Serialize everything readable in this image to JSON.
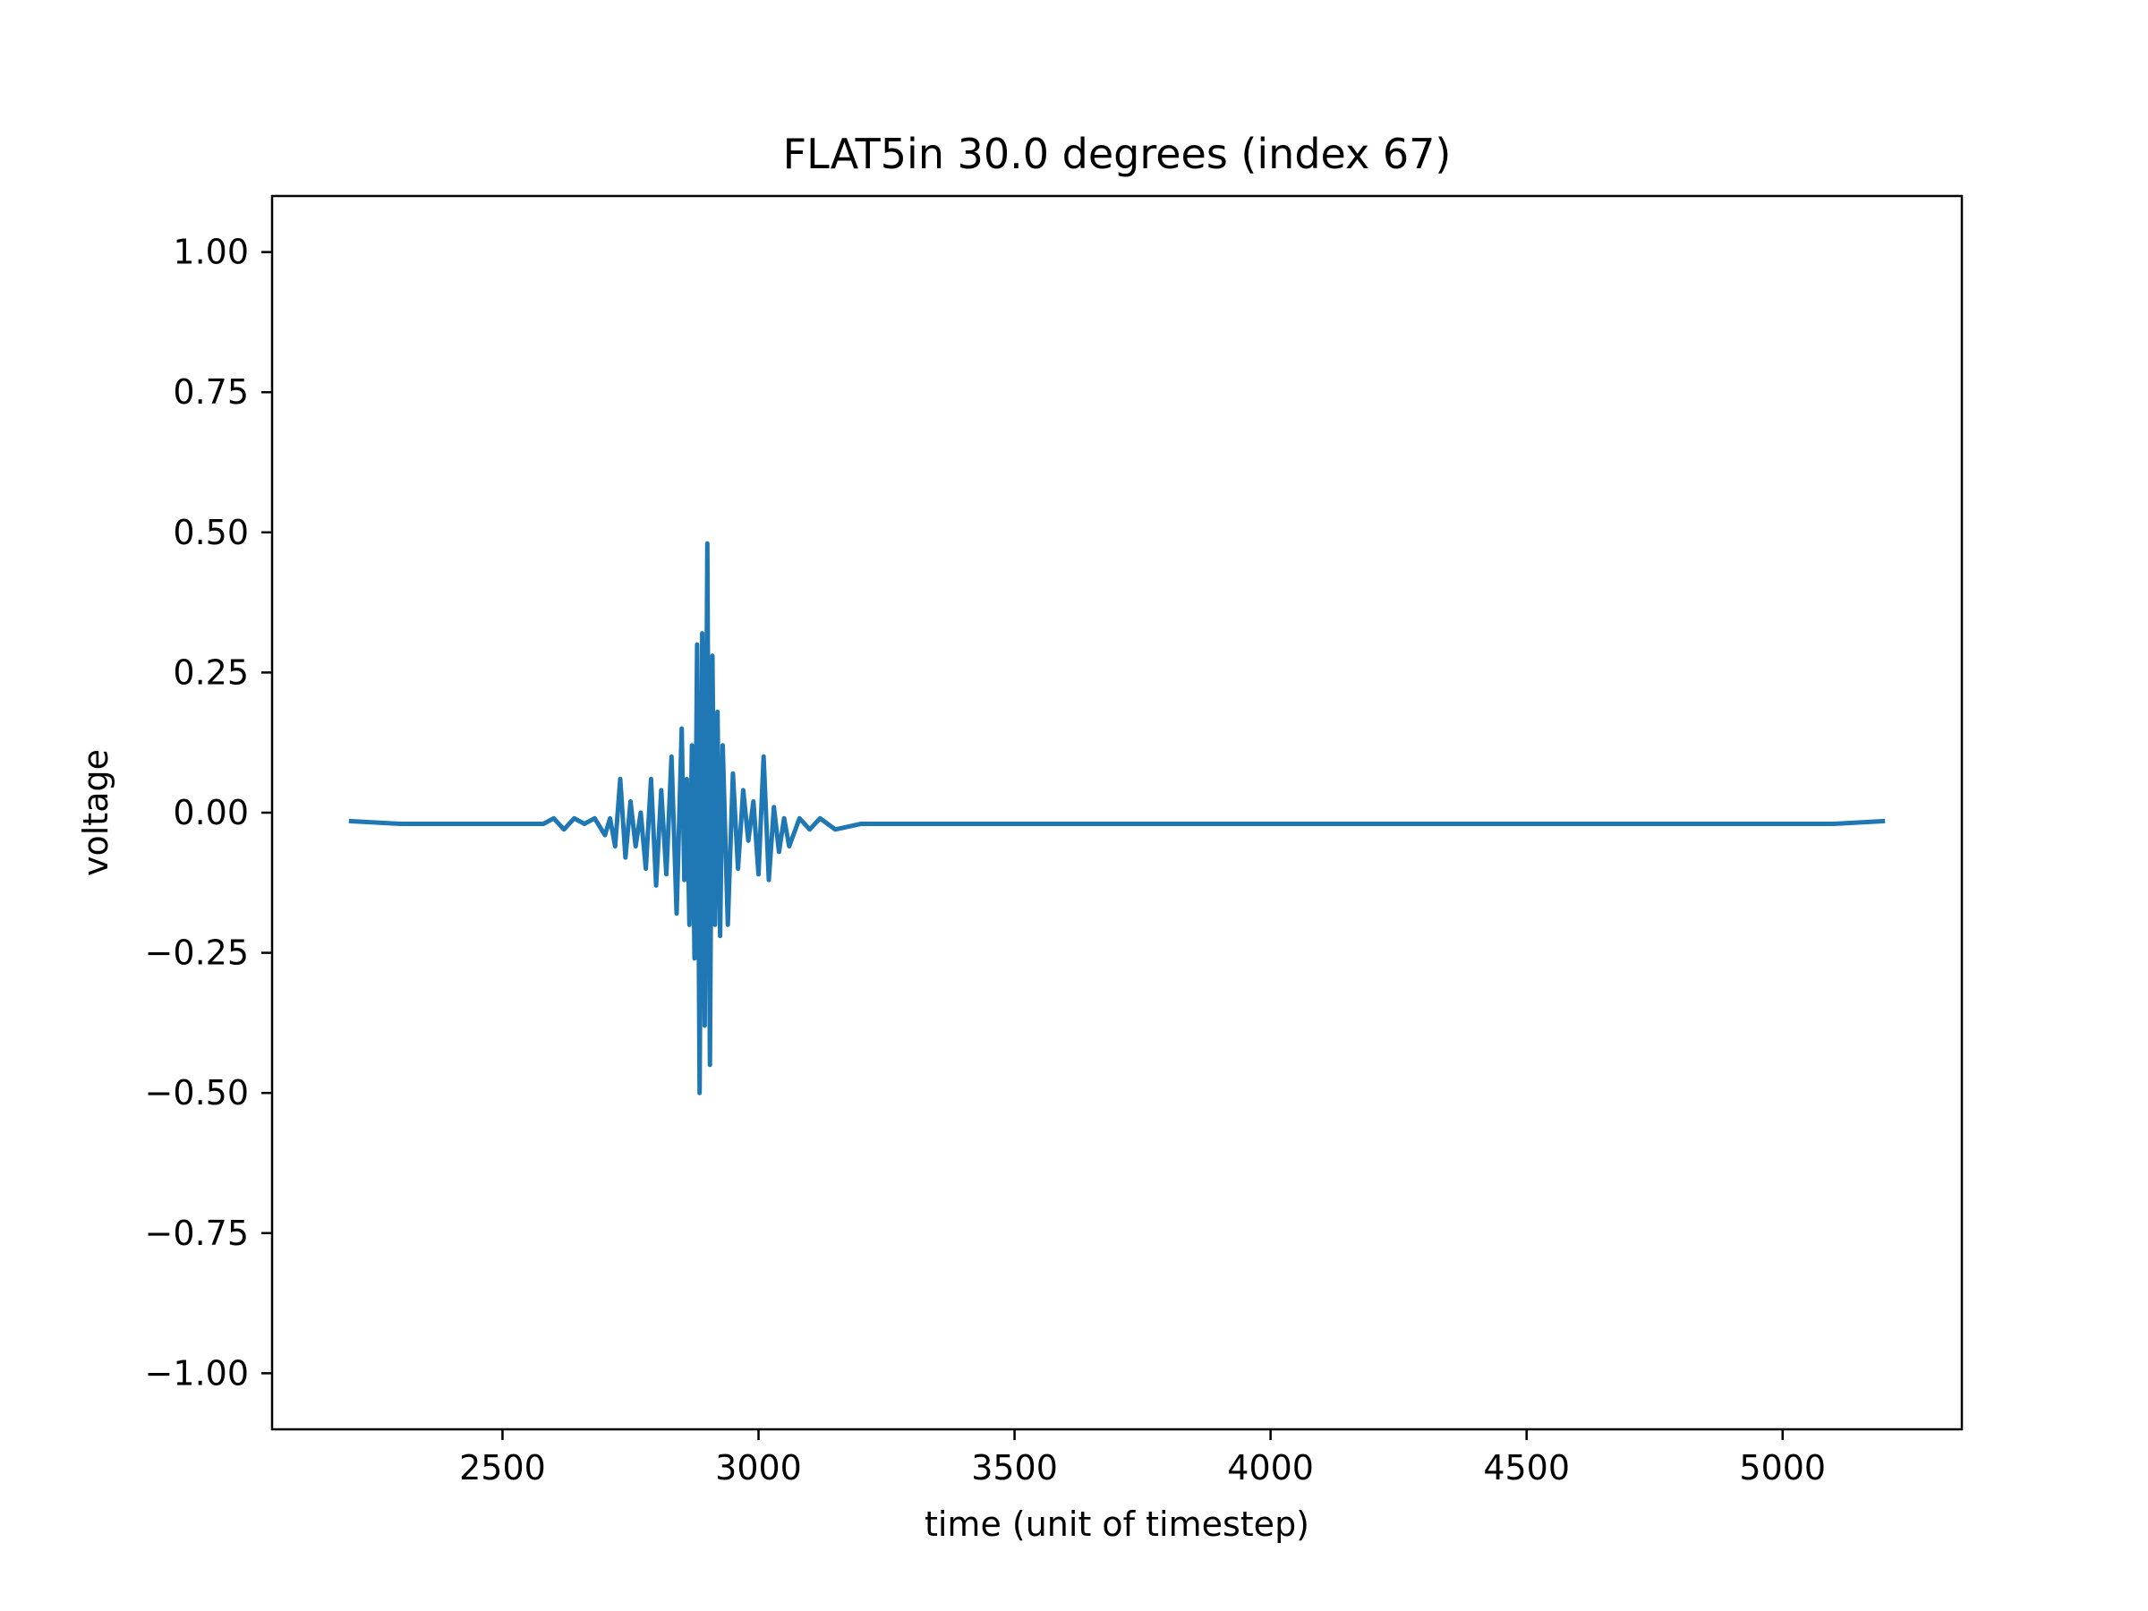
{
  "chart_data": {
    "type": "line",
    "title": "FLAT5in 30.0 degrees (index 67)",
    "xlabel": "time (unit of timestep)",
    "ylabel": "voltage",
    "xlim": [
      2050,
      5350
    ],
    "ylim": [
      -1.1,
      1.1
    ],
    "xticks": [
      2500,
      3000,
      3500,
      4000,
      4500,
      5000
    ],
    "xtick_labels": [
      "2500",
      "3000",
      "3500",
      "4000",
      "4500",
      "5000"
    ],
    "yticks": [
      1.0,
      0.75,
      0.5,
      0.25,
      0.0,
      -0.25,
      -0.5,
      -0.75,
      -1.0
    ],
    "ytick_labels": [
      "1.00",
      "0.75",
      "0.50",
      "0.25",
      "0.00",
      "−0.25",
      "−0.50",
      "−0.75",
      "−1.00"
    ],
    "grid": false,
    "line_color": "#1f77b4",
    "series": [
      {
        "x": [
          2200,
          2300,
          2400,
          2500,
          2580,
          2600,
          2620,
          2640,
          2660,
          2680,
          2700,
          2710,
          2720,
          2730,
          2740,
          2750,
          2760,
          2770,
          2780,
          2790,
          2800,
          2810,
          2820,
          2830,
          2840,
          2850,
          2855,
          2860,
          2865,
          2870,
          2875,
          2880,
          2885,
          2890,
          2895,
          2900,
          2905,
          2910,
          2915,
          2920,
          2925,
          2930,
          2940,
          2950,
          2960,
          2970,
          2980,
          2990,
          3000,
          3010,
          3020,
          3030,
          3040,
          3050,
          3060,
          3080,
          3100,
          3120,
          3150,
          3200,
          3300,
          3400,
          3500,
          3600,
          3700,
          3800,
          3900,
          4000,
          4100,
          4200,
          4300,
          4400,
          4500,
          4600,
          4700,
          4800,
          4900,
          5000,
          5100,
          5200
        ],
        "y": [
          -0.015,
          -0.02,
          -0.02,
          -0.02,
          -0.02,
          -0.01,
          -0.03,
          -0.01,
          -0.02,
          -0.01,
          -0.04,
          -0.01,
          -0.06,
          0.06,
          -0.08,
          0.02,
          -0.06,
          0.0,
          -0.1,
          0.06,
          -0.13,
          0.04,
          -0.11,
          0.1,
          -0.18,
          0.15,
          -0.12,
          0.06,
          -0.2,
          0.12,
          -0.26,
          0.3,
          -0.5,
          0.32,
          -0.38,
          0.48,
          -0.45,
          0.28,
          -0.2,
          0.18,
          -0.22,
          0.12,
          -0.2,
          0.07,
          -0.1,
          0.04,
          -0.05,
          0.02,
          -0.11,
          0.1,
          -0.12,
          0.01,
          -0.07,
          -0.01,
          -0.06,
          -0.01,
          -0.03,
          -0.01,
          -0.03,
          -0.02,
          -0.02,
          -0.02,
          -0.02,
          -0.02,
          -0.02,
          -0.02,
          -0.02,
          -0.02,
          -0.02,
          -0.02,
          -0.02,
          -0.02,
          -0.02,
          -0.02,
          -0.02,
          -0.02,
          -0.02,
          -0.02,
          -0.02,
          -0.015
        ]
      }
    ]
  }
}
